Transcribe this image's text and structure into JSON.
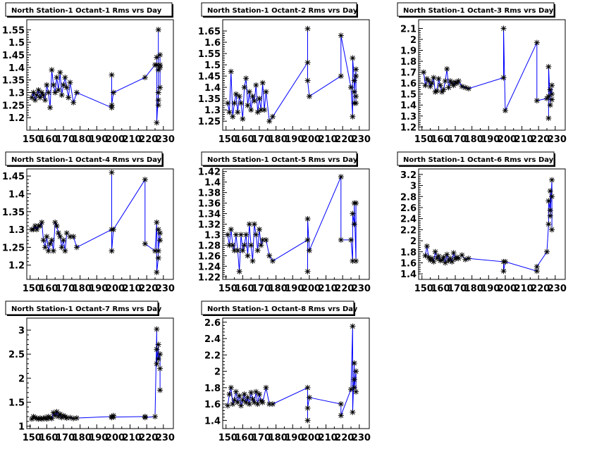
{
  "colors": {
    "line": "#0000ff",
    "marker": "#000000",
    "frame": "#000000",
    "background": "#ffffff"
  },
  "chart_data": [
    {
      "type": "line",
      "title": "North Station-1 Octant-1 Rms vrs Day",
      "xlim": [
        148,
        236
      ],
      "ylim": [
        1.15,
        1.59
      ],
      "xticks": [
        "150",
        "160",
        "170",
        "180",
        "190",
        "200",
        "210",
        "220",
        "230"
      ],
      "yticks": [
        "1.2",
        "1.25",
        "1.3",
        "1.35",
        "1.4",
        "1.45",
        "1.5",
        "1.55"
      ],
      "series": [
        {
          "x": [
            151,
            152,
            153,
            154,
            155,
            156,
            157,
            158,
            159,
            160,
            161,
            162,
            163,
            164,
            165,
            166,
            167,
            168,
            169,
            170,
            171,
            172,
            173,
            174,
            176,
            178,
            199,
            199,
            199,
            200,
            219,
            225,
            226,
            226,
            226,
            227,
            227,
            227,
            227,
            227,
            228,
            228,
            228,
            228
          ],
          "y": [
            1.28,
            1.3,
            1.27,
            1.29,
            1.31,
            1.28,
            1.3,
            1.29,
            1.27,
            1.33,
            1.3,
            1.24,
            1.39,
            1.33,
            1.3,
            1.36,
            1.31,
            1.38,
            1.29,
            1.33,
            1.36,
            1.32,
            1.28,
            1.34,
            1.26,
            1.3,
            1.24,
            1.37,
            1.25,
            1.3,
            1.36,
            1.41,
            1.41,
            1.44,
            1.18,
            1.3,
            1.27,
            1.25,
            1.55,
            1.39,
            1.4,
            1.32,
            1.45,
            1.41
          ]
        }
      ]
    },
    {
      "type": "line",
      "title": "North Station-1 Octant-2 Rms vrs Day",
      "xlim": [
        148,
        236
      ],
      "ylim": [
        1.21,
        1.7
      ],
      "xticks": [
        "150",
        "160",
        "170",
        "180",
        "190",
        "200",
        "210",
        "220",
        "230"
      ],
      "yticks": [
        "1.25",
        "1.3",
        "1.35",
        "1.4",
        "1.45",
        "1.5",
        "1.55",
        "1.6",
        "1.65"
      ],
      "series": [
        {
          "x": [
            151,
            152,
            153,
            154,
            155,
            156,
            157,
            158,
            159,
            160,
            161,
            162,
            163,
            164,
            165,
            166,
            167,
            168,
            169,
            170,
            171,
            172,
            173,
            174,
            176,
            178,
            199,
            199,
            199,
            200,
            219,
            219,
            225,
            226,
            226,
            227,
            227,
            227,
            228,
            228,
            228,
            228
          ],
          "y": [
            1.33,
            1.29,
            1.47,
            1.27,
            1.33,
            1.37,
            1.29,
            1.36,
            1.33,
            1.26,
            1.4,
            1.44,
            1.32,
            1.38,
            1.3,
            1.36,
            1.34,
            1.41,
            1.29,
            1.35,
            1.3,
            1.42,
            1.3,
            1.38,
            1.25,
            1.27,
            1.51,
            1.66,
            1.43,
            1.36,
            1.45,
            1.63,
            1.4,
            1.27,
            1.53,
            1.43,
            1.33,
            1.38,
            1.48,
            1.36,
            1.33,
            1.45
          ]
        }
      ]
    },
    {
      "type": "line",
      "title": "North Station-1 Octant-3 Rms vrs Day",
      "xlim": [
        148,
        236
      ],
      "ylim": [
        1.17,
        2.18
      ],
      "xticks": [
        "150",
        "160",
        "170",
        "180",
        "190",
        "200",
        "210",
        "220",
        "230"
      ],
      "yticks": [
        "1.2",
        "1.3",
        "1.4",
        "1.5",
        "1.6",
        "1.7",
        "1.8",
        "1.9",
        "2",
        "2.1"
      ],
      "series": [
        {
          "x": [
            151,
            152,
            153,
            154,
            155,
            156,
            157,
            158,
            159,
            160,
            161,
            162,
            163,
            164,
            165,
            166,
            167,
            168,
            169,
            170,
            171,
            172,
            174,
            176,
            178,
            199,
            199,
            200,
            219,
            219,
            225,
            226,
            226,
            226,
            227,
            227,
            228,
            228,
            228
          ],
          "y": [
            1.7,
            1.58,
            1.64,
            1.62,
            1.57,
            1.6,
            1.65,
            1.52,
            1.53,
            1.64,
            1.58,
            1.52,
            1.54,
            1.62,
            1.73,
            1.56,
            1.62,
            1.6,
            1.58,
            1.61,
            1.6,
            1.62,
            1.57,
            1.56,
            1.55,
            1.65,
            2.1,
            1.35,
            1.97,
            1.44,
            1.46,
            1.48,
            1.28,
            1.75,
            1.4,
            1.54,
            1.5,
            1.45,
            1.58
          ]
        }
      ]
    },
    {
      "type": "line",
      "title": "North Station-1 Octant-4 Rms vrs Day",
      "xlim": [
        148,
        236
      ],
      "ylim": [
        1.16,
        1.47
      ],
      "xticks": [
        "150",
        "160",
        "170",
        "180",
        "190",
        "200",
        "210",
        "220",
        "230"
      ],
      "yticks": [
        "1.2",
        "1.25",
        "1.3",
        "1.35",
        "1.4",
        "1.45"
      ],
      "series": [
        {
          "x": [
            151,
            152,
            153,
            154,
            155,
            156,
            157,
            158,
            159,
            160,
            161,
            162,
            163,
            164,
            165,
            166,
            167,
            168,
            169,
            170,
            171,
            172,
            174,
            176,
            178,
            199,
            199,
            199,
            200,
            219,
            219,
            225,
            226,
            226,
            227,
            227,
            227,
            228,
            228
          ],
          "y": [
            1.3,
            1.3,
            1.31,
            1.3,
            1.31,
            1.31,
            1.32,
            1.27,
            1.25,
            1.28,
            1.24,
            1.26,
            1.27,
            1.24,
            1.32,
            1.31,
            1.29,
            1.28,
            1.25,
            1.27,
            1.24,
            1.29,
            1.28,
            1.28,
            1.25,
            1.3,
            1.46,
            1.24,
            1.3,
            1.44,
            1.26,
            1.24,
            1.32,
            1.18,
            1.22,
            1.3,
            1.24,
            1.29,
            1.27
          ]
        }
      ]
    },
    {
      "type": "line",
      "title": "North Station-1 Octant-5 Rms vrs Day",
      "xlim": [
        148,
        236
      ],
      "ylim": [
        1.215,
        1.425
      ],
      "xticks": [
        "150",
        "160",
        "170",
        "180",
        "190",
        "200",
        "210",
        "220",
        "230"
      ],
      "yticks": [
        "1.22",
        "1.24",
        "1.26",
        "1.28",
        "1.3",
        "1.32",
        "1.34",
        "1.36",
        "1.38",
        "1.4",
        "1.42"
      ],
      "series": [
        {
          "x": [
            151,
            152,
            153,
            154,
            155,
            156,
            157,
            158,
            159,
            160,
            161,
            162,
            163,
            164,
            165,
            166,
            167,
            168,
            169,
            170,
            171,
            172,
            174,
            176,
            178,
            199,
            199,
            199,
            200,
            219,
            219,
            225,
            226,
            226,
            227,
            227,
            228,
            228
          ],
          "y": [
            1.3,
            1.28,
            1.31,
            1.28,
            1.27,
            1.3,
            1.27,
            1.23,
            1.3,
            1.27,
            1.28,
            1.3,
            1.26,
            1.32,
            1.28,
            1.25,
            1.32,
            1.3,
            1.27,
            1.31,
            1.28,
            1.29,
            1.29,
            1.26,
            1.25,
            1.29,
            1.23,
            1.33,
            1.27,
            1.41,
            1.29,
            1.29,
            1.25,
            1.34,
            1.32,
            1.36,
            1.25,
            1.36
          ]
        }
      ]
    },
    {
      "type": "line",
      "title": "North Station-1 Octant-6 Rms vrs Day",
      "xlim": [
        148,
        236
      ],
      "ylim": [
        1.3,
        3.3
      ],
      "xticks": [
        "150",
        "160",
        "170",
        "180",
        "190",
        "200",
        "210",
        "220",
        "230"
      ],
      "yticks": [
        "1.4",
        "1.6",
        "1.8",
        "2",
        "2.2",
        "2.4",
        "2.6",
        "2.8",
        "3",
        "3.2"
      ],
      "series": [
        {
          "x": [
            152,
            153,
            154,
            155,
            156,
            157,
            158,
            159,
            160,
            161,
            162,
            163,
            164,
            165,
            166,
            167,
            168,
            169,
            170,
            171,
            172,
            174,
            176,
            178,
            199,
            199,
            200,
            219,
            219,
            225,
            226,
            226,
            227,
            227,
            227,
            228,
            228,
            228
          ],
          "y": [
            1.73,
            1.9,
            1.7,
            1.65,
            1.68,
            1.62,
            1.8,
            1.68,
            1.72,
            1.64,
            1.65,
            1.7,
            1.6,
            1.75,
            1.64,
            1.68,
            1.62,
            1.78,
            1.67,
            1.7,
            1.68,
            1.74,
            1.66,
            1.68,
            1.62,
            1.45,
            1.62,
            1.45,
            1.53,
            1.8,
            2.3,
            2.72,
            2.55,
            2.9,
            2.45,
            3.1,
            2.2,
            2.8
          ]
        }
      ]
    },
    {
      "type": "line",
      "title": "North Station-1 Octant-7 Rms vrs Day",
      "xlim": [
        148,
        236
      ],
      "ylim": [
        0.95,
        3.25
      ],
      "xticks": [
        "150",
        "160",
        "170",
        "180",
        "190",
        "200",
        "210",
        "220",
        "230"
      ],
      "yticks": [
        "1",
        "1.5",
        "2",
        "2.5",
        "3"
      ],
      "series": [
        {
          "x": [
            151,
            152,
            153,
            154,
            155,
            156,
            157,
            158,
            159,
            160,
            161,
            162,
            163,
            164,
            165,
            166,
            167,
            168,
            169,
            170,
            171,
            172,
            174,
            176,
            178,
            199,
            199,
            200,
            200,
            219,
            219,
            225,
            226,
            226,
            226,
            227,
            227,
            228,
            228,
            228
          ],
          "y": [
            1.15,
            1.2,
            1.18,
            1.16,
            1.15,
            1.17,
            1.15,
            1.16,
            1.18,
            1.15,
            1.2,
            1.17,
            1.16,
            1.28,
            1.22,
            1.3,
            1.2,
            1.25,
            1.18,
            1.22,
            1.2,
            1.17,
            1.18,
            1.16,
            1.17,
            1.2,
            1.18,
            1.22,
            1.19,
            1.2,
            1.18,
            1.2,
            3.02,
            2.6,
            2.3,
            2.7,
            2.4,
            2.5,
            1.75,
            2.2
          ]
        }
      ]
    },
    {
      "type": "line",
      "title": "North Station-1 Octant-8 Rms vrs Day",
      "xlim": [
        148,
        236
      ],
      "ylim": [
        1.3,
        2.65
      ],
      "xticks": [
        "150",
        "160",
        "170",
        "180",
        "190",
        "200",
        "210",
        "220",
        "230"
      ],
      "yticks": [
        "1.4",
        "1.6",
        "1.8",
        "2",
        "2.2",
        "2.4",
        "2.6"
      ],
      "series": [
        {
          "x": [
            151,
            152,
            153,
            154,
            155,
            156,
            157,
            158,
            159,
            160,
            161,
            162,
            163,
            164,
            165,
            166,
            167,
            168,
            169,
            170,
            171,
            172,
            174,
            176,
            178,
            199,
            199,
            199,
            200,
            219,
            219,
            225,
            226,
            226,
            227,
            227,
            227,
            228,
            228
          ],
          "y": [
            1.58,
            1.72,
            1.8,
            1.6,
            1.65,
            1.75,
            1.62,
            1.7,
            1.58,
            1.65,
            1.72,
            1.62,
            1.68,
            1.6,
            1.74,
            1.66,
            1.62,
            1.75,
            1.6,
            1.72,
            1.64,
            1.62,
            1.8,
            1.6,
            1.6,
            1.8,
            1.4,
            1.55,
            1.68,
            1.6,
            1.46,
            1.78,
            2.55,
            1.5,
            2.1,
            1.9,
            1.8,
            2.0,
            1.75
          ]
        }
      ]
    }
  ]
}
